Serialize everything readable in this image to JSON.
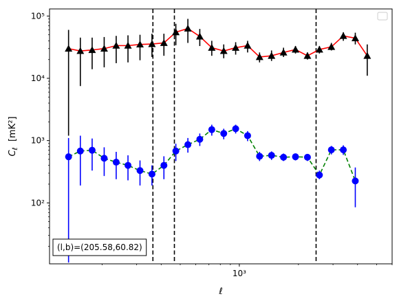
{
  "chart_data": {
    "type": "scatter",
    "xscale": "log",
    "yscale": "log",
    "xlabel": "ℓ",
    "ylabel": "C_ℓ [mK²]",
    "xticks": [
      {
        "value": 1000,
        "label": "10³"
      }
    ],
    "yticks": [
      {
        "value": 100,
        "label": "10²"
      },
      {
        "value": 1000,
        "label": "10³"
      },
      {
        "value": 10000,
        "label": "10⁴"
      },
      {
        "value": 100000,
        "label": "10⁵"
      }
    ],
    "xlim": [
      108,
      6000
    ],
    "ylim": [
      10.5,
      130000
    ],
    "vlines": [
      363,
      467,
      2460
    ],
    "annotation": "(l,b)=(205.58,60.82)",
    "legend": "upper right",
    "series": [
      {
        "marker": "triangle",
        "marker_color": "#000000",
        "line_color": "#ff0000",
        "line_style": "solid",
        "points": [
          {
            "x": 135,
            "y": 30000,
            "lo": 1200,
            "hi": 60000
          },
          {
            "x": 155,
            "y": 27500,
            "lo": 7500,
            "hi": 45000
          },
          {
            "x": 178,
            "y": 28500,
            "lo": 14000,
            "hi": 45000
          },
          {
            "x": 205,
            "y": 30000,
            "lo": 15000,
            "hi": 46000
          },
          {
            "x": 236,
            "y": 33500,
            "lo": 17500,
            "hi": 48000
          },
          {
            "x": 271,
            "y": 33500,
            "lo": 18000,
            "hi": 49000
          },
          {
            "x": 312,
            "y": 35000,
            "lo": 19500,
            "hi": 50000
          },
          {
            "x": 359,
            "y": 35500,
            "lo": 22000,
            "hi": 52000
          },
          {
            "x": 413,
            "y": 37000,
            "lo": 23000,
            "hi": 52000
          },
          {
            "x": 475,
            "y": 55000,
            "lo": 34000,
            "hi": 75000
          },
          {
            "x": 547,
            "y": 63000,
            "lo": 37000,
            "hi": 90000
          },
          {
            "x": 629,
            "y": 47000,
            "lo": 33000,
            "hi": 62000
          },
          {
            "x": 724,
            "y": 31000,
            "lo": 23000,
            "hi": 40000
          },
          {
            "x": 833,
            "y": 27500,
            "lo": 21000,
            "hi": 35000
          },
          {
            "x": 958,
            "y": 31000,
            "lo": 24000,
            "hi": 38000
          },
          {
            "x": 1102,
            "y": 33500,
            "lo": 26000,
            "hi": 40000
          },
          {
            "x": 1268,
            "y": 22000,
            "lo": 18000,
            "hi": 26000
          },
          {
            "x": 1459,
            "y": 23000,
            "lo": 19000,
            "hi": 28000
          },
          {
            "x": 1679,
            "y": 26000,
            "lo": 22000,
            "hi": 31000
          },
          {
            "x": 1932,
            "y": 29000,
            "lo": 25000,
            "hi": 33000
          },
          {
            "x": 2223,
            "y": 23000,
            "lo": 20000,
            "hi": 26000
          },
          {
            "x": 2558,
            "y": 29000,
            "lo": 25000,
            "hi": 33000
          },
          {
            "x": 2943,
            "y": 32000,
            "lo": 28000,
            "hi": 37000
          },
          {
            "x": 3386,
            "y": 48000,
            "lo": 40000,
            "hi": 55000
          },
          {
            "x": 3896,
            "y": 44000,
            "lo": 35000,
            "hi": 54000
          },
          {
            "x": 4482,
            "y": 23000,
            "lo": 11000,
            "hi": 35000
          }
        ]
      },
      {
        "marker": "circle",
        "marker_color": "#0000ff",
        "line_color": "#008000",
        "line_style": "dashed",
        "points": [
          {
            "x": 135,
            "y": 550,
            "lo": 11,
            "hi": 1100
          },
          {
            "x": 155,
            "y": 680,
            "lo": 190,
            "hi": 1200
          },
          {
            "x": 178,
            "y": 700,
            "lo": 330,
            "hi": 1080
          },
          {
            "x": 205,
            "y": 520,
            "lo": 270,
            "hi": 780
          },
          {
            "x": 236,
            "y": 450,
            "lo": 240,
            "hi": 660
          },
          {
            "x": 271,
            "y": 400,
            "lo": 230,
            "hi": 580
          },
          {
            "x": 312,
            "y": 330,
            "lo": 190,
            "hi": 480
          },
          {
            "x": 359,
            "y": 290,
            "lo": 190,
            "hi": 400
          },
          {
            "x": 413,
            "y": 400,
            "lo": 240,
            "hi": 560
          },
          {
            "x": 475,
            "y": 680,
            "lo": 470,
            "hi": 890
          },
          {
            "x": 547,
            "y": 860,
            "lo": 640,
            "hi": 1100
          },
          {
            "x": 629,
            "y": 1050,
            "lo": 820,
            "hi": 1300
          },
          {
            "x": 724,
            "y": 1500,
            "lo": 1200,
            "hi": 1800
          },
          {
            "x": 833,
            "y": 1300,
            "lo": 1050,
            "hi": 1550
          },
          {
            "x": 958,
            "y": 1550,
            "lo": 1300,
            "hi": 1800
          },
          {
            "x": 1102,
            "y": 1200,
            "lo": 980,
            "hi": 1420
          },
          {
            "x": 1268,
            "y": 560,
            "lo": 470,
            "hi": 660
          },
          {
            "x": 1459,
            "y": 580,
            "lo": 490,
            "hi": 670
          },
          {
            "x": 1679,
            "y": 540,
            "lo": 470,
            "hi": 620
          },
          {
            "x": 1932,
            "y": 550,
            "lo": 480,
            "hi": 620
          },
          {
            "x": 2223,
            "y": 540,
            "lo": 470,
            "hi": 610
          },
          {
            "x": 2558,
            "y": 280,
            "lo": 240,
            "hi": 330
          },
          {
            "x": 2943,
            "y": 710,
            "lo": 600,
            "hi": 820
          },
          {
            "x": 3386,
            "y": 710,
            "lo": 590,
            "hi": 840
          },
          {
            "x": 3896,
            "y": 225,
            "lo": 85,
            "hi": 370
          }
        ]
      }
    ]
  }
}
